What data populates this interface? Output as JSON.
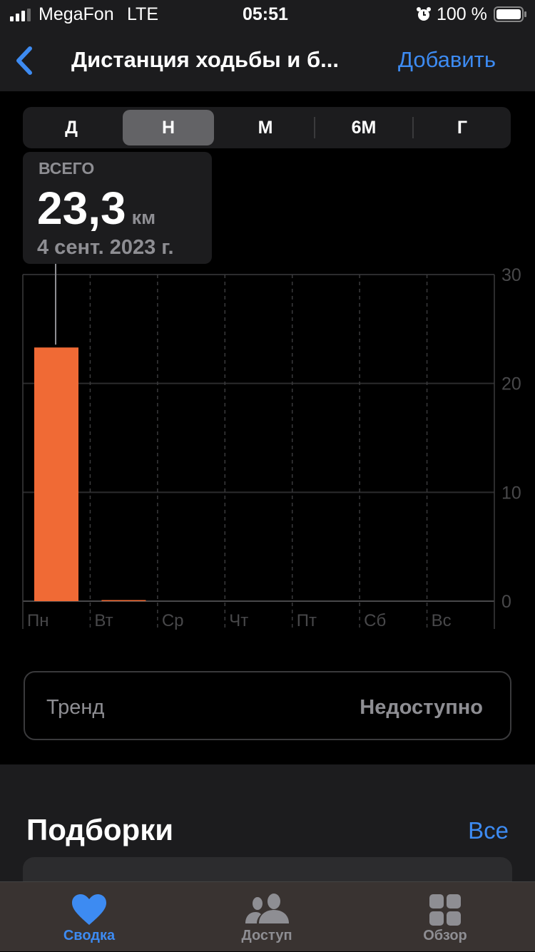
{
  "status_bar": {
    "carrier": "MegaFon",
    "network": "LTE",
    "time": "05:51",
    "battery": "100 %",
    "icons": [
      "signal-icon",
      "alarm-icon",
      "battery-icon"
    ]
  },
  "nav": {
    "back_icon": "chevron-left-icon",
    "title": "Дистанция ходьбы и б...",
    "add_label": "Добавить"
  },
  "segments": [
    {
      "label": "Д"
    },
    {
      "label": "Н",
      "selected": true
    },
    {
      "label": "М"
    },
    {
      "label": "6М"
    },
    {
      "label": "Г"
    }
  ],
  "callout": {
    "label": "ВСЕГО",
    "value": "23,3",
    "unit": "км",
    "date": "4 сент. 2023 г."
  },
  "chart_data": {
    "type": "bar",
    "categories": [
      "Пн",
      "Вт",
      "Ср",
      "Чт",
      "Пт",
      "Сб",
      "Вс"
    ],
    "values": [
      23.3,
      0.1,
      0,
      0,
      0,
      0,
      0
    ],
    "ylim": [
      0,
      30
    ],
    "yticks": [
      "0",
      "10",
      "20",
      "30"
    ],
    "color": "#f06a35",
    "grid": true
  },
  "trend": {
    "label": "Тренд",
    "value": "Недоступно"
  },
  "highlights": {
    "title": "Подборки",
    "all_label": "Все"
  },
  "tabbar": {
    "items": [
      {
        "label": "Сводка",
        "icon": "heart-icon",
        "active": true
      },
      {
        "label": "Доступ",
        "icon": "people-icon"
      },
      {
        "label": "Обзор",
        "icon": "grid-icon"
      }
    ]
  },
  "colors": {
    "accent": "#3d8bf2",
    "bar": "#f06a35",
    "inactive": "#8e8e93"
  }
}
